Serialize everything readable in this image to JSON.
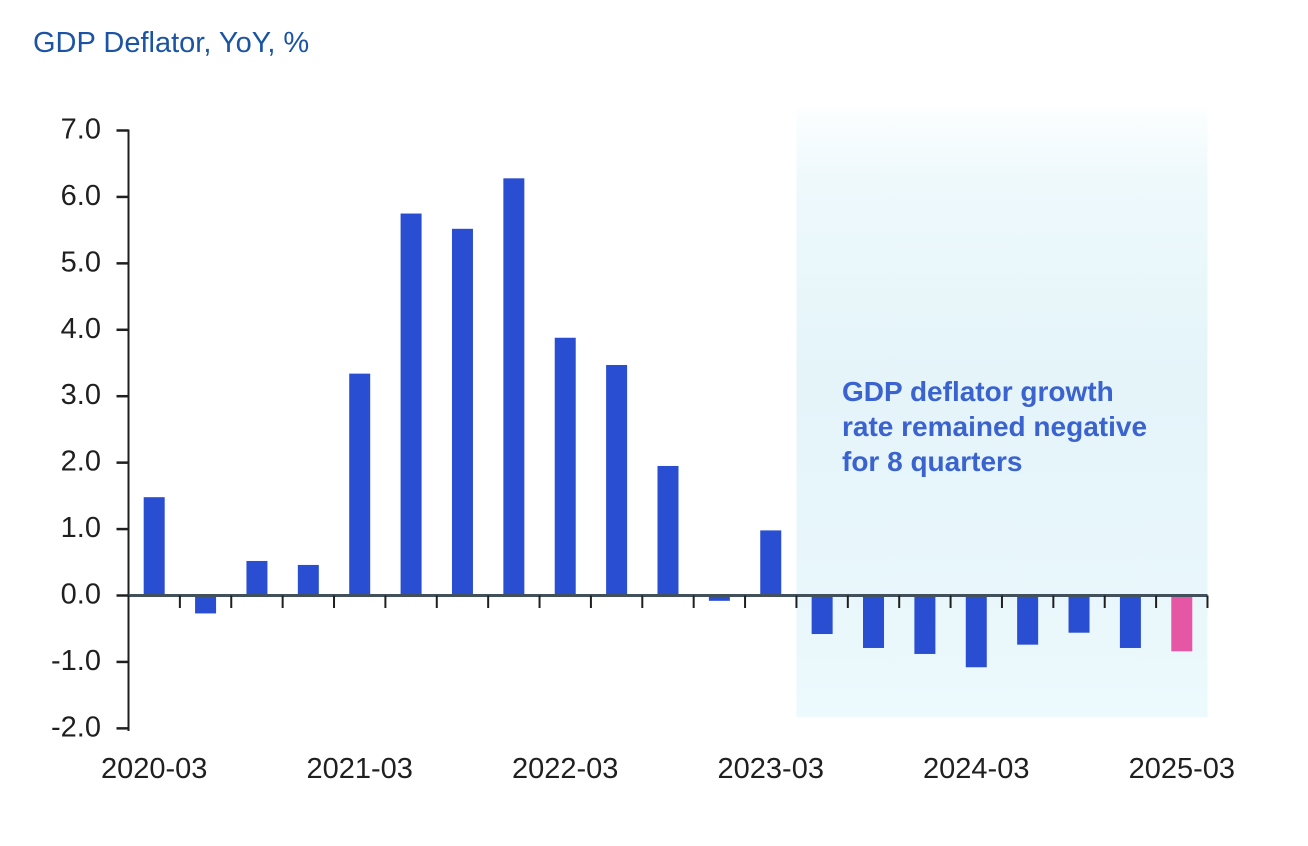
{
  "title": "GDP Deflator, YoY, %",
  "chart_data": {
    "type": "bar",
    "title": "GDP Deflator, YoY, %",
    "x": [
      "2020-03",
      "2020-06",
      "2020-09",
      "2020-12",
      "2021-03",
      "2021-06",
      "2021-09",
      "2021-12",
      "2022-03",
      "2022-06",
      "2022-09",
      "2022-12",
      "2023-03",
      "2023-06",
      "2023-09",
      "2023-12",
      "2024-03",
      "2024-06",
      "2024-09",
      "2024-12",
      "2025-03"
    ],
    "values": [
      1.48,
      -0.27,
      0.52,
      0.46,
      3.34,
      5.75,
      5.52,
      6.28,
      3.88,
      3.47,
      1.95,
      -0.08,
      0.98,
      -0.58,
      -0.79,
      -0.88,
      -1.08,
      -0.74,
      -0.56,
      -0.79,
      -0.84
    ],
    "ylim": [
      -2.0,
      7.0
    ],
    "ytick_step": 1.0,
    "ytick_labels": [
      "7.0",
      "6.0",
      "5.0",
      "4.0",
      "3.0",
      "2.0",
      "1.0",
      "0.0",
      "-1.0",
      "-2.0"
    ],
    "xtick_labels": [
      "2020-03",
      "2021-03",
      "2022-03",
      "2023-03",
      "2024-03",
      "2025-03"
    ],
    "colors": {
      "bar": "#2a4ed2",
      "highlight_bar": "#e557a4",
      "title": "#1b54a4",
      "annotation": "#3a63cf",
      "axis": "#1f1f1f",
      "zero_line": "#42505c",
      "shade_top": "#fcfeff",
      "shade_mid": "#e4f4f9",
      "shade_bottom": "#ecf9fd"
    },
    "highlight_index": 20,
    "shaded_region": {
      "start_index": 13,
      "end_index": 20
    },
    "annotation": {
      "text": "GDP deflator growth rate remained negative for 8 quarters",
      "lines": [
        "GDP deflator growth",
        "rate remained negative",
        "for 8 quarters"
      ]
    },
    "grid": false,
    "legend": false
  }
}
